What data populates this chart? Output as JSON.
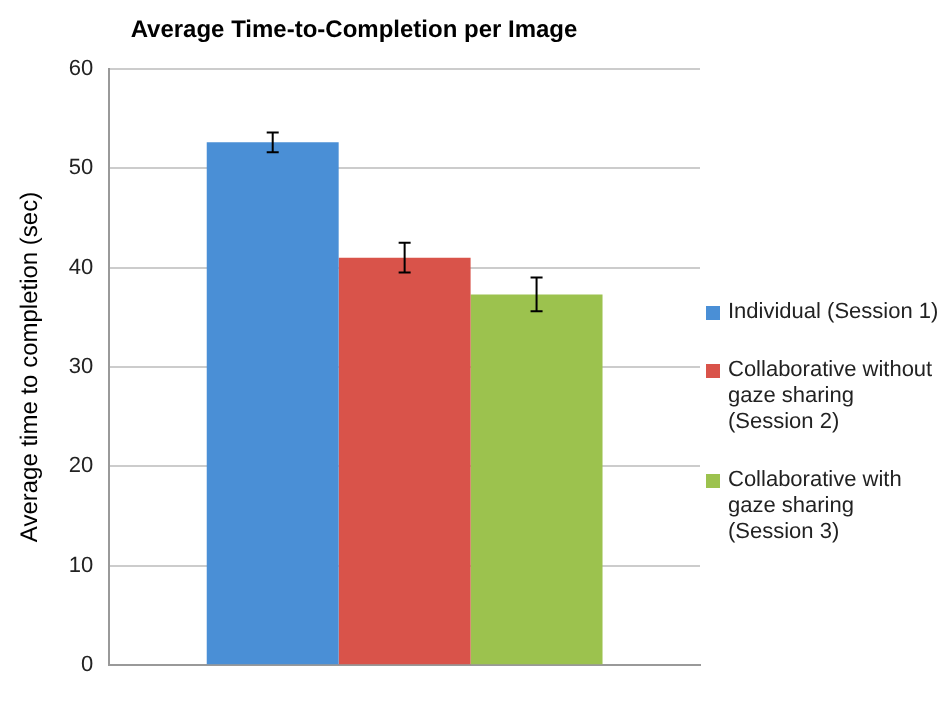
{
  "chart_data": {
    "type": "bar",
    "title": "Average Time-to-Completion per Image",
    "ylabel": "Average time to completion (sec)",
    "categories": [
      null
    ],
    "series": [
      {
        "name": "Individual (Session 1)",
        "color": "#4a8fd6",
        "values": [
          52.6
        ],
        "errors": [
          1.0
        ]
      },
      {
        "name": "Collaborative without gaze sharing (Session 2)",
        "color": "#d9534a",
        "values": [
          41.0
        ],
        "errors": [
          1.5
        ]
      },
      {
        "name": "Collaborative with gaze sharing (Session 3)",
        "color": "#9cc24e",
        "values": [
          37.3
        ],
        "errors": [
          1.7
        ]
      }
    ],
    "ylim": [
      0,
      60
    ],
    "yticks": [
      0,
      10,
      20,
      30,
      40,
      50,
      60
    ],
    "grid": "y",
    "legend": "right"
  }
}
